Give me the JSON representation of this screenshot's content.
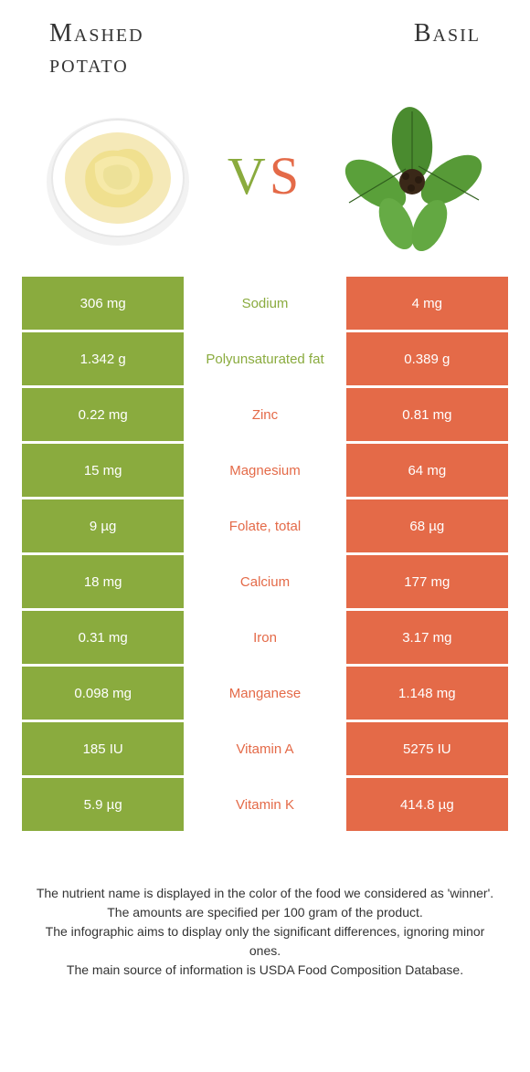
{
  "colors": {
    "green": "#8aab3e",
    "orange": "#e46a48",
    "text": "#333333",
    "white": "#ffffff"
  },
  "header": {
    "left_title_line1": "Mashed",
    "left_title_line2": "potato",
    "right_title": "Basil",
    "vs_label": "VS"
  },
  "rows": [
    {
      "left": "306 mg",
      "label": "Sodium",
      "right": "4 mg",
      "winner": "left"
    },
    {
      "left": "1.342 g",
      "label": "Polyunsaturated fat",
      "right": "0.389 g",
      "winner": "left"
    },
    {
      "left": "0.22 mg",
      "label": "Zinc",
      "right": "0.81 mg",
      "winner": "right"
    },
    {
      "left": "15 mg",
      "label": "Magnesium",
      "right": "64 mg",
      "winner": "right"
    },
    {
      "left": "9 µg",
      "label": "Folate, total",
      "right": "68 µg",
      "winner": "right"
    },
    {
      "left": "18 mg",
      "label": "Calcium",
      "right": "177 mg",
      "winner": "right"
    },
    {
      "left": "0.31 mg",
      "label": "Iron",
      "right": "3.17 mg",
      "winner": "right"
    },
    {
      "left": "0.098 mg",
      "label": "Manganese",
      "right": "1.148 mg",
      "winner": "right"
    },
    {
      "left": "185 IU",
      "label": "Vitamin A",
      "right": "5275 IU",
      "winner": "right"
    },
    {
      "left": "5.9 µg",
      "label": "Vitamin K",
      "right": "414.8 µg",
      "winner": "right"
    }
  ],
  "footnotes": [
    "The nutrient name is displayed in the color of the food we considered as 'winner'.",
    "The amounts are specified per 100 gram of the product.",
    "The infographic aims to display only the significant differences, ignoring minor ones.",
    "The main source of information is USDA Food Composition Database."
  ]
}
